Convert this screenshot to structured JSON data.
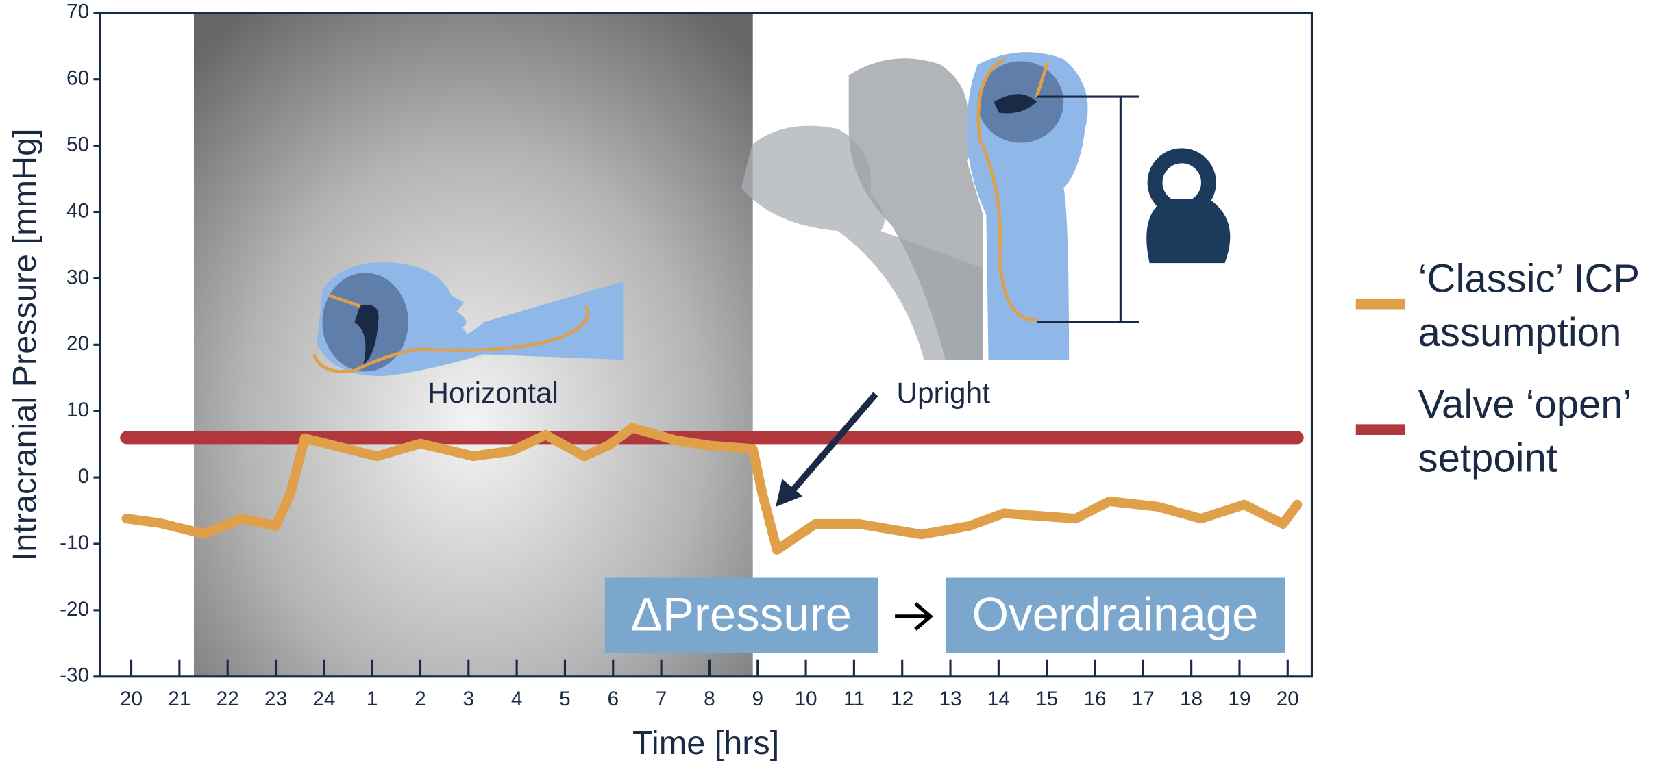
{
  "chart_data": {
    "type": "line",
    "y_label": "Intracranial Pressure [mmHg]",
    "x_label": "Time [hrs]",
    "ylim": [
      -30,
      70
    ],
    "yticks": [
      -30,
      -20,
      -10,
      0,
      10,
      20,
      30,
      40,
      50,
      60,
      70
    ],
    "xlim": [
      19.35,
      44.5
    ],
    "xticks": [
      20,
      21,
      22,
      23,
      24,
      {
        "value": 25,
        "label": "1"
      },
      {
        "value": 26,
        "label": "2"
      },
      {
        "value": 27,
        "label": "3"
      },
      {
        "value": 28,
        "label": "4"
      },
      {
        "value": 29,
        "label": "5"
      },
      {
        "value": 30,
        "label": "6"
      },
      {
        "value": 31,
        "label": "7"
      },
      {
        "value": 32,
        "label": "8"
      },
      {
        "value": 33,
        "label": "9"
      },
      {
        "value": 34,
        "label": "10"
      },
      {
        "value": 35,
        "label": "11"
      },
      {
        "value": 36,
        "label": "12"
      },
      {
        "value": 37,
        "label": "13"
      },
      {
        "value": 38,
        "label": "14"
      },
      {
        "value": 39,
        "label": "15"
      },
      {
        "value": 40,
        "label": "16"
      },
      {
        "value": 41,
        "label": "17"
      },
      {
        "value": 42,
        "label": "18"
      },
      {
        "value": 43,
        "label": "19"
      },
      {
        "value": 44,
        "label": "20"
      }
    ],
    "shaded_span": [
      21.3,
      32.9
    ],
    "series": [
      {
        "name": "‘Classic’ ICP assumption",
        "color": "#e0a04a",
        "x": [
          19.9,
          20.6,
          21.5,
          22.3,
          23.0,
          23.3,
          23.6,
          24.2,
          25.1,
          26.0,
          27.1,
          27.9,
          28.6,
          29.4,
          29.9,
          30.4,
          31.3,
          32.0,
          32.9,
          33.1,
          33.4,
          34.2,
          35.1,
          36.4,
          37.4,
          38.1,
          39.6,
          40.3,
          41.3,
          42.2,
          43.1,
          43.9,
          44.2
        ],
        "values": [
          -6.2,
          -6.9,
          -8.5,
          -6.2,
          -7.3,
          -2.5,
          5.9,
          4.8,
          3.2,
          5.1,
          3.2,
          4.0,
          6.4,
          3.2,
          4.8,
          7.5,
          5.6,
          4.8,
          4.3,
          -2.5,
          -10.9,
          -7.0,
          -7.0,
          -8.6,
          -7.3,
          -5.4,
          -6.2,
          -3.6,
          -4.4,
          -6.2,
          -4.1,
          -7.0,
          -4.1
        ]
      },
      {
        "name": "Valve ‘open’ setpoint",
        "color": "#b0383d",
        "x": [
          19.9,
          44.2
        ],
        "values": [
          6,
          6
        ]
      }
    ],
    "annotations": [
      "Horizontal",
      "Upright"
    ],
    "boxes": [
      "ΔPressure",
      "Overdrainage"
    ]
  }
}
